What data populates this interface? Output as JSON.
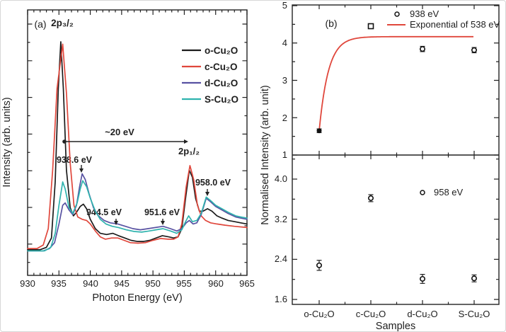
{
  "figure": {
    "background": "#ffffff",
    "axis_color": "#222222"
  },
  "chart_data": [
    {
      "id": "a",
      "type": "line",
      "panel_label": "(a)",
      "xlabel": "Photon Energy (eV)",
      "ylabel": "Intensity (arb. units)",
      "xlim": [
        930,
        965
      ],
      "xticks": [
        930,
        935,
        940,
        945,
        950,
        955,
        960,
        965
      ],
      "xtick_labels": [
        "930",
        "935",
        "940",
        "945",
        "950",
        "955",
        "960",
        "965"
      ],
      "x_minor_step": 1,
      "grid": false,
      "legend_position": "upper right",
      "annotations": {
        "peak_main": "2p₃/₂",
        "peak_secondary": "2p₁/₂",
        "separation_arrow": "~20 eV",
        "satellite_1": "938.6 eV",
        "satellite_2": "944.5 eV",
        "satellite_3": "951.6 eV",
        "satellite_4": "958.0 eV"
      },
      "series": [
        {
          "name": "o-Cu₂O",
          "color": "#1c1c1c",
          "points": [
            [
              930,
              11
            ],
            [
              932,
              11
            ],
            [
              933,
              12
            ],
            [
              933.8,
              16
            ],
            [
              934.4,
              40
            ],
            [
              934.9,
              80
            ],
            [
              935.3,
              100
            ],
            [
              935.7,
              80
            ],
            [
              936.2,
              45
            ],
            [
              936.8,
              29
            ],
            [
              937.3,
              25.5
            ],
            [
              937.8,
              27
            ],
            [
              938.4,
              29.5
            ],
            [
              938.9,
              30.5
            ],
            [
              939.4,
              28.5
            ],
            [
              940,
              24
            ],
            [
              940.8,
              20
            ],
            [
              941.6,
              18
            ],
            [
              942.6,
              17.5
            ],
            [
              943.6,
              18
            ],
            [
              944.5,
              17
            ],
            [
              945.5,
              16
            ],
            [
              946.5,
              15
            ],
            [
              947.5,
              14.5
            ],
            [
              948.5,
              14.5
            ],
            [
              949.5,
              15
            ],
            [
              950.5,
              16
            ],
            [
              951.5,
              17
            ],
            [
              952.5,
              16.5
            ],
            [
              953.3,
              16
            ],
            [
              954,
              16.5
            ],
            [
              954.6,
              20
            ],
            [
              955.2,
              33
            ],
            [
              955.8,
              45
            ],
            [
              956.3,
              42
            ],
            [
              956.8,
              33
            ],
            [
              957.4,
              27.5
            ],
            [
              958,
              27.5
            ],
            [
              958.7,
              28.5
            ],
            [
              959.4,
              27.5
            ],
            [
              960.2,
              25.5
            ],
            [
              961,
              24.5
            ],
            [
              962,
              23.5
            ],
            [
              963,
              23
            ],
            [
              964,
              22.5
            ],
            [
              965,
              22
            ]
          ]
        },
        {
          "name": "c-Cu₂O",
          "color": "#e0473c",
          "points": [
            [
              930,
              11.5
            ],
            [
              931.5,
              11.5
            ],
            [
              932.5,
              13
            ],
            [
              933.3,
              20
            ],
            [
              934,
              45
            ],
            [
              934.7,
              80
            ],
            [
              935.6,
              99
            ],
            [
              936.2,
              78
            ],
            [
              936.8,
              48
            ],
            [
              937.4,
              30
            ],
            [
              938,
              25
            ],
            [
              938.7,
              24
            ],
            [
              939.4,
              23.5
            ],
            [
              940,
              22
            ],
            [
              940.8,
              19
            ],
            [
              941.6,
              16.5
            ],
            [
              942.4,
              15.5
            ],
            [
              943.4,
              16
            ],
            [
              944.4,
              16
            ],
            [
              945.4,
              15
            ],
            [
              946.4,
              14
            ],
            [
              947.6,
              13.8
            ],
            [
              948.8,
              14
            ],
            [
              950,
              15
            ],
            [
              951.2,
              15.8
            ],
            [
              952.4,
              15.5
            ],
            [
              953.3,
              15.5
            ],
            [
              954,
              16.5
            ],
            [
              954.6,
              22
            ],
            [
              955.3,
              38
            ],
            [
              955.9,
              47
            ],
            [
              956.5,
              41
            ],
            [
              957.1,
              30
            ],
            [
              957.7,
              25.5
            ],
            [
              958.4,
              23.5
            ],
            [
              959.2,
              22.5
            ],
            [
              960.2,
              22
            ],
            [
              961.5,
              21.5
            ],
            [
              963,
              21
            ],
            [
              965,
              20.5
            ]
          ]
        },
        {
          "name": "d-Cu₂O",
          "color": "#5852a2",
          "points": [
            [
              930,
              10.5
            ],
            [
              932.5,
              10.5
            ],
            [
              933.5,
              11.5
            ],
            [
              934.3,
              14
            ],
            [
              935,
              22
            ],
            [
              935.6,
              30
            ],
            [
              936,
              31
            ],
            [
              936.6,
              28
            ],
            [
              937.2,
              26
            ],
            [
              937.8,
              30
            ],
            [
              938.3,
              38
            ],
            [
              938.7,
              43.5
            ],
            [
              939.2,
              41
            ],
            [
              939.8,
              35
            ],
            [
              940.5,
              29
            ],
            [
              941.3,
              25.5
            ],
            [
              942.2,
              23.5
            ],
            [
              943.2,
              22.5
            ],
            [
              944.4,
              22
            ],
            [
              945.6,
              21
            ],
            [
              946.8,
              20
            ],
            [
              948,
              19.5
            ],
            [
              949.2,
              20
            ],
            [
              950.4,
              20.5
            ],
            [
              951.6,
              21
            ],
            [
              952.8,
              20
            ],
            [
              953.8,
              19
            ],
            [
              954.6,
              20
            ],
            [
              955.3,
              22.5
            ],
            [
              955.8,
              23.5
            ],
            [
              956.4,
              22
            ],
            [
              957,
              22.5
            ],
            [
              957.7,
              26
            ],
            [
              958.5,
              33
            ],
            [
              959.2,
              31.5
            ],
            [
              960,
              29.5
            ],
            [
              961,
              28
            ],
            [
              962,
              26.5
            ],
            [
              963.2,
              25
            ],
            [
              964,
              24.5
            ],
            [
              965,
              24
            ]
          ]
        },
        {
          "name": "S-Cu₂O",
          "color": "#2fb3ae",
          "points": [
            [
              930,
              10.5
            ],
            [
              932.7,
              10.5
            ],
            [
              933.7,
              12
            ],
            [
              934.4,
              18
            ],
            [
              935,
              30
            ],
            [
              935.6,
              40
            ],
            [
              936,
              37
            ],
            [
              936.6,
              29
            ],
            [
              937.2,
              26.5
            ],
            [
              937.9,
              31
            ],
            [
              938.4,
              37
            ],
            [
              938.8,
              40.5
            ],
            [
              939.4,
              38
            ],
            [
              940,
              33
            ],
            [
              940.8,
              27.5
            ],
            [
              941.6,
              24
            ],
            [
              942.5,
              22
            ],
            [
              943.5,
              21
            ],
            [
              944.5,
              20.5
            ],
            [
              945.7,
              19.5
            ],
            [
              947,
              18.8
            ],
            [
              948.2,
              18.5
            ],
            [
              949.4,
              19
            ],
            [
              950.5,
              19.5
            ],
            [
              951.6,
              20
            ],
            [
              952.8,
              19
            ],
            [
              953.8,
              18
            ],
            [
              954.6,
              19.5
            ],
            [
              955.2,
              23
            ],
            [
              955.7,
              25.5
            ],
            [
              956.3,
              23
            ],
            [
              957,
              23.5
            ],
            [
              957.7,
              26.5
            ],
            [
              958.5,
              33.5
            ],
            [
              959.2,
              32
            ],
            [
              960,
              30
            ],
            [
              961,
              28.5
            ],
            [
              962,
              27
            ],
            [
              963.2,
              25.5
            ],
            [
              964,
              25
            ],
            [
              965,
              24.5
            ]
          ]
        }
      ]
    },
    {
      "id": "b",
      "type": "scatter",
      "panel_label": "(b)",
      "xlabel": "Samples",
      "ylabel": "Normalised Intensity (arb. unit)",
      "categories": [
        "o-Cu₂O",
        "c-Cu₂O",
        "d-Cu₂O",
        "S-Cu₂O"
      ],
      "subpanels": [
        {
          "position": "top",
          "ylim": [
            1,
            5
          ],
          "yticks": [
            1,
            2,
            3,
            4,
            5
          ],
          "ytick_labels_top_to_bottom": [
            "5",
            "4",
            "3",
            "2",
            "1"
          ],
          "y_minor_ticks": [
            1.5,
            2.5,
            3.5,
            4.5
          ],
          "legend": [
            {
              "marker": "open-circle",
              "label": "938 eV"
            },
            {
              "marker": "red-line",
              "label": "Exponential of 538 eV"
            }
          ],
          "series": [
            {
              "name": "938 eV",
              "color": "#1c1c1c",
              "values": [
                1.65,
                4.45,
                3.84,
                3.81
              ],
              "errors": [
                0.05,
                0,
                0.07,
                0.07
              ],
              "markers": [
                "filled-circle",
                "open-square",
                "open-circle",
                "open-circle"
              ]
            }
          ],
          "fit_curve": {
            "name": "Exponential of 538 eV",
            "color": "#e0473c",
            "shape": "exponential-saturation",
            "y_start": 1.65,
            "y_plateau": 4.17
          }
        },
        {
          "position": "bottom",
          "ylim": [
            1.6,
            4.0
          ],
          "yticks": [
            1.6,
            2.4,
            3.2,
            4.0
          ],
          "ytick_labels_top_to_bottom": [
            "4.0",
            "3.2",
            "2.4",
            "1.6"
          ],
          "y_minor_ticks": [
            2.0,
            2.8,
            3.6,
            4.4
          ],
          "legend": [
            {
              "marker": "open-circle",
              "label": "958 eV"
            }
          ],
          "series": [
            {
              "name": "958 eV",
              "color": "#1c1c1c",
              "values": [
                2.28,
                3.62,
                2.01,
                2.02
              ],
              "errors": [
                0.1,
                0.07,
                0.09,
                0.07
              ],
              "markers": [
                "open-circle",
                "open-circle",
                "open-circle",
                "open-circle"
              ]
            }
          ]
        }
      ]
    }
  ]
}
